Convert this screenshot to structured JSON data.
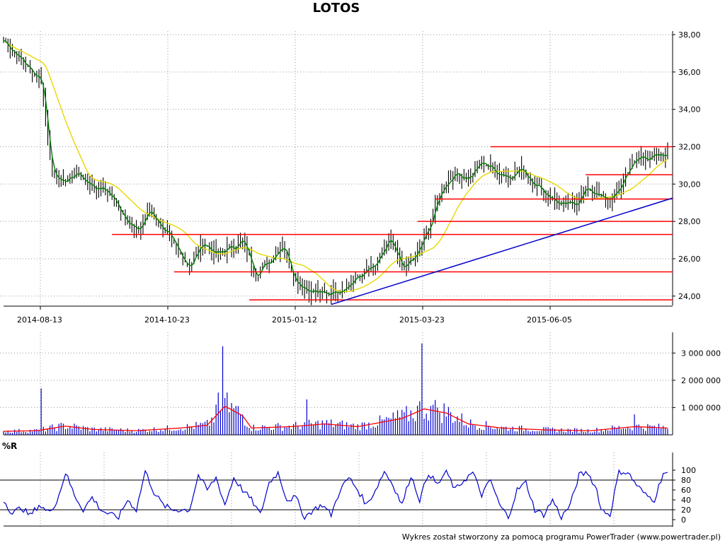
{
  "title": "LOTOS",
  "footer": "Wykres został stworzony za pomocą programu PowerTrader (www.powertrader.pl)",
  "colors": {
    "bars": "#000000",
    "ma_short": "#008000",
    "ma_long": "#e6d800",
    "support": "#ff0000",
    "trend": "#0000cc",
    "volume": "#0000cc",
    "volume_ma": "#ff0000",
    "wr": "#0000cc"
  },
  "chart_data": [
    {
      "name": "price",
      "type": "line",
      "x_ticks": [
        "2014-08-13",
        "2014-10-23",
        "2015-01-12",
        "2015-03-23",
        "2015-06-05"
      ],
      "y_ticks": [
        "38,00",
        "36,00",
        "34,00",
        "32,00",
        "30,00",
        "28,00",
        "26,00",
        "24,00"
      ],
      "ylim": [
        23.5,
        38.0
      ],
      "grid": true,
      "close_anchors": [
        [
          0,
          37.7
        ],
        [
          6,
          36.9
        ],
        [
          12,
          36.1
        ],
        [
          17,
          35.6
        ],
        [
          22,
          30.5
        ],
        [
          27,
          30.1
        ],
        [
          33,
          30.6
        ],
        [
          40,
          29.9
        ],
        [
          47,
          29.6
        ],
        [
          54,
          28.4
        ],
        [
          60,
          27.4
        ],
        [
          66,
          28.6
        ],
        [
          72,
          27.6
        ],
        [
          78,
          26.5
        ],
        [
          84,
          25.6
        ],
        [
          90,
          26.9
        ],
        [
          96,
          26.2
        ],
        [
          102,
          26.6
        ],
        [
          108,
          26.9
        ],
        [
          114,
          25.2
        ],
        [
          120,
          25.9
        ],
        [
          126,
          26.8
        ],
        [
          132,
          24.8
        ],
        [
          138,
          24.3
        ],
        [
          144,
          24.1
        ],
        [
          150,
          24.3
        ],
        [
          156,
          24.6
        ],
        [
          162,
          25.2
        ],
        [
          168,
          25.6
        ],
        [
          174,
          27.0
        ],
        [
          180,
          25.5
        ],
        [
          186,
          26.1
        ],
        [
          192,
          27.7
        ],
        [
          198,
          29.8
        ],
        [
          204,
          30.6
        ],
        [
          210,
          30.3
        ],
        [
          216,
          31.2
        ],
        [
          222,
          30.7
        ],
        [
          228,
          30.4
        ],
        [
          234,
          30.8
        ],
        [
          240,
          30.0
        ],
        [
          246,
          29.4
        ],
        [
          252,
          28.8
        ],
        [
          258,
          29.0
        ],
        [
          264,
          29.8
        ],
        [
          270,
          29.2
        ],
        [
          276,
          29.3
        ],
        [
          282,
          30.8
        ],
        [
          288,
          31.5
        ],
        [
          294,
          31.4
        ],
        [
          300,
          31.6
        ]
      ],
      "horizontal_levels": [
        {
          "value": 32.0,
          "from_index": 220
        },
        {
          "value": 30.5,
          "from_index": 263
        },
        {
          "value": 29.2,
          "from_index": 195
        },
        {
          "value": 28.0,
          "from_index": 187
        },
        {
          "value": 27.3,
          "from_index": 49
        },
        {
          "value": 25.3,
          "from_index": 77
        },
        {
          "value": 23.8,
          "from_index": 111
        }
      ],
      "trendline": [
        {
          "index": 148,
          "value": 23.55
        },
        {
          "index": 300,
          "value": 29.25
        }
      ],
      "ma_short_period": 3,
      "ma_long_period": 20
    },
    {
      "name": "volume",
      "type": "bar",
      "y_ticks": [
        "3 000 000",
        "2 000 000",
        "1 000 000"
      ],
      "ylim": [
        0,
        3500000
      ],
      "spikes": [
        {
          "index": 17,
          "value": 1700000
        },
        {
          "index": 97,
          "value": 1550000
        },
        {
          "index": 99,
          "value": 3250000
        },
        {
          "index": 100,
          "value": 1350000
        },
        {
          "index": 137,
          "value": 1300000
        },
        {
          "index": 178,
          "value": 900000
        },
        {
          "index": 189,
          "value": 3350000
        },
        {
          "index": 194,
          "value": 1100000
        },
        {
          "index": 196,
          "value": 1000000
        },
        {
          "index": 285,
          "value": 750000
        }
      ],
      "volume_ma_anchors": [
        [
          0,
          130000
        ],
        [
          15,
          150000
        ],
        [
          28,
          320000
        ],
        [
          40,
          200000
        ],
        [
          60,
          150000
        ],
        [
          80,
          250000
        ],
        [
          92,
          350000
        ],
        [
          100,
          1050000
        ],
        [
          108,
          700000
        ],
        [
          112,
          250000
        ],
        [
          130,
          300000
        ],
        [
          145,
          400000
        ],
        [
          160,
          300000
        ],
        [
          180,
          600000
        ],
        [
          190,
          950000
        ],
        [
          200,
          800000
        ],
        [
          210,
          400000
        ],
        [
          225,
          250000
        ],
        [
          245,
          180000
        ],
        [
          265,
          150000
        ],
        [
          285,
          300000
        ],
        [
          300,
          250000
        ]
      ]
    },
    {
      "name": "williams_r",
      "label": "%R",
      "type": "line",
      "y_ticks": [
        "100",
        "80",
        "60",
        "40",
        "20",
        "0"
      ],
      "ylim": [
        0,
        100
      ],
      "levels": [
        80,
        20
      ],
      "anchors": [
        [
          0,
          40
        ],
        [
          4,
          12
        ],
        [
          8,
          25
        ],
        [
          12,
          8
        ],
        [
          16,
          30
        ],
        [
          20,
          15
        ],
        [
          24,
          35
        ],
        [
          28,
          95
        ],
        [
          32,
          50
        ],
        [
          36,
          20
        ],
        [
          40,
          45
        ],
        [
          44,
          20
        ],
        [
          48,
          10
        ],
        [
          52,
          5
        ],
        [
          56,
          40
        ],
        [
          60,
          20
        ],
        [
          64,
          98
        ],
        [
          68,
          55
        ],
        [
          72,
          30
        ],
        [
          76,
          20
        ],
        [
          80,
          20
        ],
        [
          84,
          20
        ],
        [
          88,
          90
        ],
        [
          92,
          60
        ],
        [
          96,
          85
        ],
        [
          100,
          30
        ],
        [
          104,
          85
        ],
        [
          108,
          60
        ],
        [
          112,
          40
        ],
        [
          116,
          10
        ],
        [
          120,
          75
        ],
        [
          124,
          95
        ],
        [
          128,
          40
        ],
        [
          132,
          45
        ],
        [
          136,
          5
        ],
        [
          140,
          20
        ],
        [
          144,
          30
        ],
        [
          148,
          10
        ],
        [
          152,
          60
        ],
        [
          156,
          85
        ],
        [
          160,
          60
        ],
        [
          164,
          30
        ],
        [
          168,
          60
        ],
        [
          172,
          98
        ],
        [
          176,
          70
        ],
        [
          180,
          30
        ],
        [
          184,
          90
        ],
        [
          188,
          40
        ],
        [
          192,
          95
        ],
        [
          196,
          70
        ],
        [
          200,
          98
        ],
        [
          204,
          60
        ],
        [
          208,
          80
        ],
        [
          212,
          95
        ],
        [
          216,
          50
        ],
        [
          220,
          80
        ],
        [
          224,
          30
        ],
        [
          228,
          5
        ],
        [
          232,
          60
        ],
        [
          236,
          75
        ],
        [
          240,
          20
        ],
        [
          244,
          10
        ],
        [
          248,
          40
        ],
        [
          252,
          5
        ],
        [
          256,
          30
        ],
        [
          260,
          90
        ],
        [
          264,
          95
        ],
        [
          268,
          60
        ],
        [
          270,
          20
        ],
        [
          274,
          10
        ],
        [
          278,
          98
        ],
        [
          282,
          95
        ],
        [
          286,
          70
        ],
        [
          290,
          50
        ],
        [
          294,
          40
        ],
        [
          298,
          95
        ],
        [
          300,
          93
        ]
      ]
    }
  ]
}
